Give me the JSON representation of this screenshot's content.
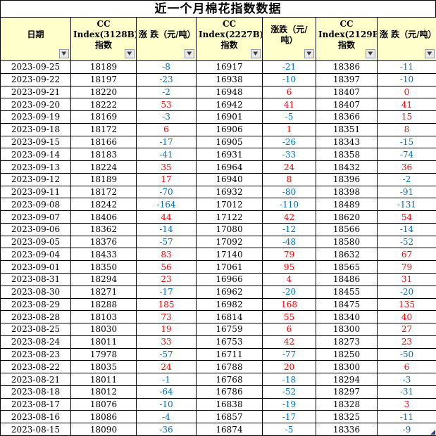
{
  "title": "近一个月棉花指数数据",
  "columns": [
    {
      "label": "日期"
    },
    {
      "label": "CC Index(3128B)指数"
    },
    {
      "label": "涨 跌（元/吨）"
    },
    {
      "label": "CC Index(2227B)指数"
    },
    {
      "label": "涨跌（元/吨）"
    },
    {
      "label": "CC Index(2129B)指数"
    },
    {
      "label": "涨 跌（元/吨）"
    }
  ],
  "icons": {
    "filter_dropdown": "▼"
  },
  "colors": {
    "header_bg": "#FFFFCC",
    "positive_change": "#FF0000",
    "negative_change": "#0070C0",
    "border": "#000000",
    "range_corner_marker": "#2E3E9B"
  },
  "rows": [
    [
      "2023-09-25",
      18189,
      -8,
      16917,
      -21,
      18386,
      -11
    ],
    [
      "2023-09-22",
      18197,
      -23,
      16938,
      -10,
      18397,
      -10
    ],
    [
      "2023-09-21",
      18220,
      -2,
      16948,
      6,
      18407,
      0
    ],
    [
      "2023-09-20",
      18222,
      53,
      16942,
      41,
      18407,
      41
    ],
    [
      "2023-09-19",
      18169,
      -3,
      16901,
      -5,
      18366,
      15
    ],
    [
      "2023-09-18",
      18172,
      6,
      16906,
      1,
      18351,
      8
    ],
    [
      "2023-09-15",
      18166,
      -17,
      16905,
      -26,
      18343,
      -15
    ],
    [
      "2023-09-14",
      18183,
      -41,
      16931,
      -33,
      18358,
      -74
    ],
    [
      "2023-09-13",
      18224,
      35,
      16964,
      24,
      18432,
      36
    ],
    [
      "2023-09-12",
      18189,
      17,
      16940,
      8,
      18396,
      -2
    ],
    [
      "2023-09-11",
      18172,
      -70,
      16932,
      -80,
      18398,
      -91
    ],
    [
      "2023-09-08",
      18242,
      -164,
      17012,
      -110,
      18489,
      -131
    ],
    [
      "2023-09-07",
      18406,
      44,
      17122,
      42,
      18620,
      54
    ],
    [
      "2023-09-06",
      18362,
      -14,
      17080,
      -12,
      18566,
      -14
    ],
    [
      "2023-09-05",
      18376,
      -57,
      17092,
      -48,
      18580,
      -52
    ],
    [
      "2023-09-04",
      18433,
      83,
      17140,
      79,
      18632,
      67
    ],
    [
      "2023-09-01",
      18350,
      56,
      17061,
      95,
      18565,
      79
    ],
    [
      "2023-08-31",
      18294,
      23,
      16966,
      4,
      18486,
      31
    ],
    [
      "2023-08-30",
      18271,
      -17,
      16962,
      -20,
      18455,
      -20
    ],
    [
      "2023-08-29",
      18288,
      185,
      16982,
      168,
      18475,
      135
    ],
    [
      "2023-08-28",
      18103,
      73,
      16814,
      55,
      18340,
      40
    ],
    [
      "2023-08-25",
      18030,
      19,
      16759,
      6,
      18300,
      27
    ],
    [
      "2023-08-24",
      18011,
      33,
      16753,
      42,
      18273,
      23
    ],
    [
      "2023-08-23",
      17978,
      -57,
      16711,
      -77,
      18250,
      -50
    ],
    [
      "2023-08-22",
      18035,
      24,
      16788,
      20,
      18300,
      6
    ],
    [
      "2023-08-21",
      18011,
      -1,
      16768,
      -18,
      18294,
      -3
    ],
    [
      "2023-08-18",
      18012,
      -64,
      16786,
      -52,
      18297,
      -31
    ],
    [
      "2023-08-17",
      18076,
      -10,
      16838,
      -19,
      18328,
      3
    ],
    [
      "2023-08-16",
      18086,
      -4,
      16857,
      -17,
      18325,
      -11
    ],
    [
      "2023-08-15",
      18090,
      -36,
      16874,
      -5,
      18336,
      -9
    ]
  ]
}
